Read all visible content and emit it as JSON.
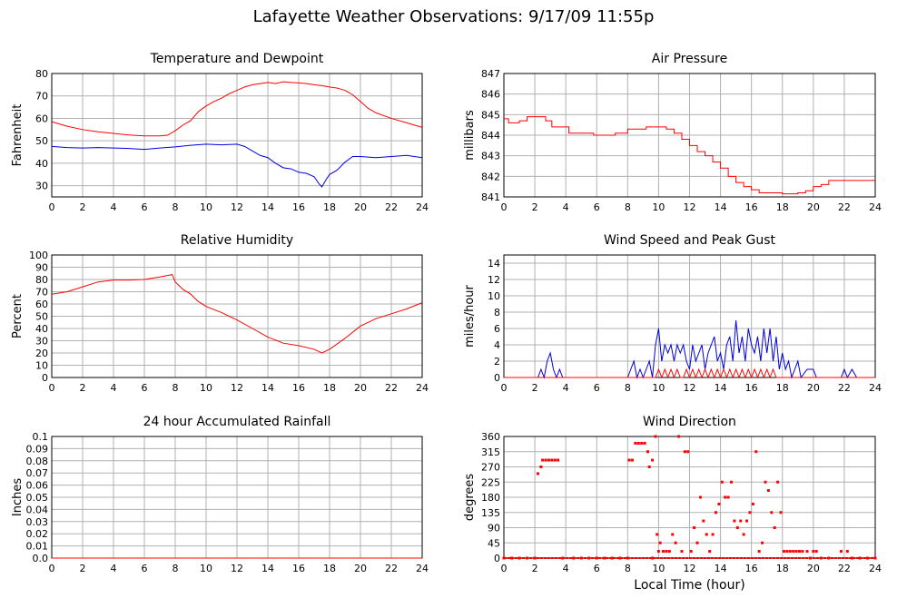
{
  "page": {
    "title": "Lafayette Weather Observations: 9/17/09 11:55p"
  },
  "colors": {
    "red": "#ff0000",
    "blue": "#0000dd",
    "grid": "#b0b0b0",
    "frame": "#000000"
  },
  "chart_data": [
    {
      "id": "temp",
      "type": "line",
      "title": "Temperature and Dewpoint",
      "ylabel": "Fahrenheit",
      "xlabel": "",
      "xlim": [
        0,
        24
      ],
      "ylim": [
        25,
        80
      ],
      "xticks": [
        0,
        2,
        4,
        6,
        8,
        10,
        12,
        14,
        16,
        18,
        20,
        22,
        24
      ],
      "yticks": [
        30,
        40,
        50,
        60,
        70,
        80
      ],
      "grid": true,
      "series": [
        {
          "color": "red",
          "x": [
            0,
            1,
            2,
            3,
            4,
            5,
            6,
            7,
            7.5,
            8,
            8.5,
            9,
            9.5,
            10,
            10.5,
            11,
            11.5,
            12,
            12.5,
            13,
            13.5,
            14,
            14.5,
            15,
            15.5,
            16,
            16.5,
            17,
            17.5,
            18,
            18.5,
            19,
            19.5,
            20,
            20.5,
            21,
            22,
            23,
            24
          ],
          "y": [
            58.5,
            56.5,
            55,
            54,
            53.3,
            52.6,
            52.2,
            52.2,
            52.5,
            54.5,
            57,
            59,
            63,
            65.5,
            67.5,
            69,
            71,
            72.5,
            74,
            75,
            75.5,
            76,
            75.5,
            76.3,
            76,
            75.8,
            75.5,
            75,
            74.6,
            74,
            73.5,
            72.5,
            70.5,
            67.5,
            64.5,
            62.5,
            60,
            58,
            56
          ]
        },
        {
          "color": "blue",
          "x": [
            0,
            1,
            2,
            3,
            4,
            5,
            6,
            7,
            8,
            9,
            10,
            11,
            12,
            12.5,
            13,
            13.5,
            14,
            14.5,
            15,
            15.5,
            16,
            16.5,
            17,
            17.3,
            17.5,
            17.8,
            18,
            18.5,
            19,
            19.5,
            20,
            21,
            22,
            23,
            24
          ],
          "y": [
            47.5,
            47,
            46.8,
            47,
            46.8,
            46.6,
            46.2,
            46.8,
            47.3,
            48,
            48.5,
            48.2,
            48.5,
            47.5,
            45.5,
            43.5,
            42.5,
            40,
            38,
            37.5,
            36,
            35.5,
            34,
            31,
            29.5,
            33,
            35,
            37,
            40.5,
            43,
            43,
            42.5,
            43,
            43.5,
            42.5
          ]
        }
      ]
    },
    {
      "id": "pressure",
      "type": "line",
      "title": "Air Pressure",
      "ylabel": "millibars",
      "xlabel": "",
      "xlim": [
        0,
        24
      ],
      "ylim": [
        841,
        847
      ],
      "xticks": [
        0,
        2,
        4,
        6,
        8,
        10,
        12,
        14,
        16,
        18,
        20,
        22,
        24
      ],
      "yticks": [
        841,
        842,
        843,
        844,
        845,
        846,
        847
      ],
      "grid": true,
      "step": true,
      "series": [
        {
          "color": "red",
          "x": [
            0,
            0.3,
            1,
            1.5,
            2.7,
            3.1,
            4.2,
            5.8,
            7.2,
            8,
            9.2,
            10.5,
            11,
            11.5,
            12,
            12.5,
            13,
            13.5,
            14,
            14.5,
            15,
            15.5,
            16,
            16.5,
            17,
            18,
            19,
            19.5,
            20,
            20.5,
            21,
            22,
            24
          ],
          "y": [
            844.8,
            844.6,
            844.7,
            844.9,
            844.7,
            844.4,
            844.1,
            844.0,
            844.1,
            844.3,
            844.4,
            844.3,
            844.1,
            843.8,
            843.5,
            843.2,
            843,
            842.7,
            842.4,
            842.0,
            841.7,
            841.5,
            841.35,
            841.2,
            841.2,
            841.15,
            841.2,
            841.3,
            841.5,
            841.6,
            841.8,
            841.8,
            841.8
          ]
        }
      ]
    },
    {
      "id": "humidity",
      "type": "line",
      "title": "Relative Humidity",
      "ylabel": "Percent",
      "xlabel": "",
      "xlim": [
        0,
        24
      ],
      "ylim": [
        0,
        100
      ],
      "xticks": [
        0,
        2,
        4,
        6,
        8,
        10,
        12,
        14,
        16,
        18,
        20,
        22,
        24
      ],
      "yticks": [
        0,
        10,
        20,
        30,
        40,
        50,
        60,
        70,
        80,
        90,
        100
      ],
      "grid": true,
      "series": [
        {
          "color": "red",
          "x": [
            0,
            1,
            2,
            3,
            4,
            5,
            6,
            7,
            7.8,
            8,
            8.5,
            9,
            9.5,
            10,
            11,
            12,
            13,
            14,
            15,
            16,
            17,
            17.5,
            18,
            19,
            20,
            21,
            22,
            23,
            24
          ],
          "y": [
            68,
            70,
            74,
            78,
            79.5,
            79.5,
            80,
            82,
            84,
            78,
            72,
            68,
            62,
            58,
            53,
            47,
            40,
            33,
            28,
            26,
            23,
            20,
            23,
            32,
            42,
            48,
            52,
            56,
            61
          ]
        }
      ]
    },
    {
      "id": "wind",
      "type": "line",
      "title": "Wind Speed and Peak Gust",
      "ylabel": "miles/hour",
      "xlabel": "",
      "xlim": [
        0,
        24
      ],
      "ylim": [
        0,
        15
      ],
      "xticks": [
        0,
        2,
        4,
        6,
        8,
        10,
        12,
        14,
        16,
        18,
        20,
        22,
        24
      ],
      "yticks": [
        0,
        2,
        4,
        6,
        8,
        10,
        12,
        14
      ],
      "grid": true,
      "series": [
        {
          "color": "blue",
          "x": [
            0,
            2.2,
            2.4,
            2.6,
            2.8,
            3,
            3.2,
            3.4,
            3.6,
            3.8,
            4,
            8,
            8.2,
            8.4,
            8.6,
            8.8,
            9,
            9.2,
            9.4,
            9.6,
            9.8,
            10,
            10.2,
            10.4,
            10.6,
            10.8,
            11,
            11.2,
            11.4,
            11.6,
            11.8,
            12,
            12.2,
            12.4,
            12.6,
            12.8,
            13,
            13.2,
            13.4,
            13.6,
            13.8,
            14,
            14.2,
            14.4,
            14.6,
            14.8,
            15,
            15.2,
            15.4,
            15.6,
            15.8,
            16,
            16.2,
            16.4,
            16.6,
            16.8,
            17,
            17.2,
            17.4,
            17.6,
            17.8,
            18,
            18.2,
            18.4,
            18.6,
            18.8,
            19,
            19.2,
            19.6,
            20,
            20.2,
            21.8,
            22,
            22.2,
            22.5,
            22.8,
            24
          ],
          "y": [
            0,
            0,
            1,
            0,
            2,
            3,
            1,
            0,
            1,
            0,
            0,
            0,
            1,
            2,
            0,
            1,
            0,
            1,
            2,
            0,
            4,
            6,
            2,
            4,
            3,
            4,
            2,
            4,
            3,
            4,
            2,
            1,
            4,
            2,
            3,
            4,
            1,
            3,
            4,
            5,
            2,
            3,
            1,
            4,
            5,
            2,
            7,
            3,
            5,
            2,
            6,
            4,
            3,
            5,
            2,
            6,
            3,
            6,
            2,
            5,
            1,
            3,
            1,
            2,
            0,
            1,
            2,
            0,
            1,
            1,
            0,
            0,
            1,
            0,
            1,
            0,
            0
          ]
        },
        {
          "color": "red",
          "x": [
            0,
            9.6,
            9.8,
            10,
            10.2,
            10.4,
            10.6,
            10.8,
            11,
            11.2,
            11.4,
            11.6,
            11.8,
            12,
            12.2,
            12.4,
            12.6,
            12.8,
            13,
            13.2,
            13.4,
            13.6,
            13.8,
            14,
            14.2,
            14.4,
            14.6,
            14.8,
            15,
            15.2,
            15.4,
            15.6,
            15.8,
            16,
            16.2,
            16.4,
            16.6,
            16.8,
            17,
            17.2,
            17.4,
            17.6,
            24
          ],
          "y": [
            0,
            0,
            0,
            1,
            0,
            1,
            0,
            1,
            0,
            1,
            0,
            0,
            1,
            0,
            1,
            0,
            1,
            0,
            1,
            0,
            1,
            0,
            1,
            0,
            1,
            0,
            1,
            0,
            1,
            0,
            1,
            0,
            1,
            0,
            1,
            0,
            1,
            0,
            1,
            0,
            1,
            0,
            0
          ]
        }
      ]
    },
    {
      "id": "rain",
      "type": "line",
      "title": "24 hour Accumulated Rainfall",
      "ylabel": "Inches",
      "xlabel": "",
      "xlim": [
        0,
        24
      ],
      "ylim": [
        0,
        0.1
      ],
      "xticks": [
        0,
        2,
        4,
        6,
        8,
        10,
        12,
        14,
        16,
        18,
        20,
        22,
        24
      ],
      "yticks": [
        "0.0",
        "0.01",
        "0.02",
        "0.03",
        "0.04",
        "0.05",
        "0.06",
        "0.07",
        "0.08",
        "0.09",
        "0.1"
      ],
      "grid": true,
      "series": [
        {
          "color": "red",
          "x": [
            0,
            24
          ],
          "y": [
            0,
            0
          ]
        }
      ]
    },
    {
      "id": "direction",
      "type": "scatter",
      "title": "Wind Direction",
      "ylabel": "degrees",
      "xlabel": "Local Time (hour)",
      "xlim": [
        0,
        24
      ],
      "ylim": [
        0,
        360
      ],
      "xticks": [
        0,
        2,
        4,
        6,
        8,
        10,
        12,
        14,
        16,
        18,
        20,
        22,
        24
      ],
      "yticks": [
        0,
        45,
        90,
        135,
        180,
        225,
        270,
        315,
        360
      ],
      "grid": true,
      "series": [
        {
          "color": "red",
          "x": [
            2.2,
            2.4,
            2.5,
            2.7,
            2.9,
            3.1,
            3.3,
            3.5,
            8.1,
            8.3,
            8.5,
            8.7,
            8.9,
            9.1,
            9.3,
            9.4,
            9.6,
            9.8,
            9.9,
            10.0,
            10.1,
            10.3,
            10.5,
            10.7,
            10.9,
            11.1,
            11.3,
            11.5,
            11.7,
            11.9,
            12.1,
            12.3,
            12.5,
            12.7,
            12.9,
            13.1,
            13.3,
            13.5,
            13.7,
            13.9,
            14.1,
            14.3,
            14.5,
            14.7,
            14.9,
            15.1,
            15.3,
            15.5,
            15.7,
            15.9,
            16.1,
            16.3,
            16.5,
            16.7,
            16.9,
            17.1,
            17.3,
            17.5,
            17.7,
            17.9,
            18.1,
            18.3,
            18.5,
            18.7,
            18.9,
            19.1,
            19.3,
            19.6,
            20.0,
            20.2,
            21.8,
            22.2
          ],
          "y": [
            250,
            270,
            290,
            290,
            290,
            290,
            290,
            290,
            290,
            290,
            340,
            340,
            340,
            340,
            315,
            270,
            290,
            360,
            70,
            20,
            45,
            20,
            20,
            20,
            70,
            45,
            360,
            20,
            315,
            315,
            20,
            90,
            45,
            180,
            110,
            70,
            20,
            70,
            135,
            160,
            225,
            180,
            180,
            225,
            110,
            90,
            110,
            70,
            110,
            135,
            160,
            315,
            20,
            45,
            225,
            200,
            135,
            90,
            225,
            135,
            20,
            20,
            20,
            20,
            20,
            20,
            20,
            20,
            20,
            20,
            20,
            20
          ]
        },
        {
          "color": "red",
          "x": [
            0,
            0.5,
            1,
            1.5,
            2,
            3.8,
            4.5,
            5,
            5.5,
            6,
            6.5,
            7,
            7.5,
            8,
            9.6,
            19.8,
            20.5,
            21,
            22.5,
            23,
            23.5,
            24
          ],
          "y": [
            0,
            0,
            0,
            0,
            0,
            0,
            0,
            0,
            0,
            0,
            0,
            0,
            0,
            0,
            0,
            0,
            0,
            0,
            0,
            0,
            0,
            0
          ]
        }
      ]
    }
  ]
}
